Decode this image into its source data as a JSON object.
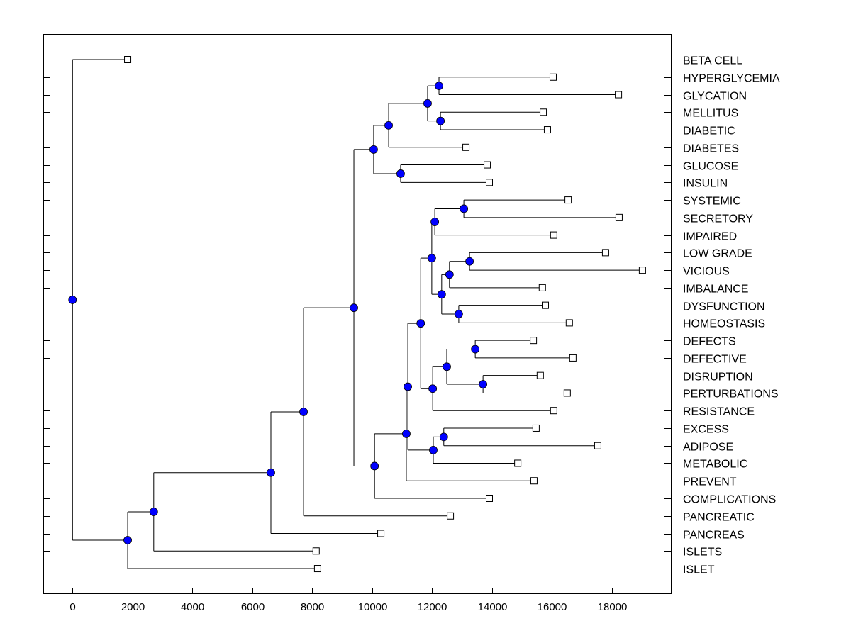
{
  "chart_data": {
    "type": "dendrogram",
    "title": "",
    "xlabel": "",
    "ylabel": "",
    "xlim": [
      -970,
      20000
    ],
    "xticks": [
      0,
      2000,
      4000,
      6000,
      8000,
      10000,
      12000,
      14000,
      16000,
      18000
    ],
    "grid": false,
    "colors": {
      "node": "#0000ff",
      "leaf": "#ffffff",
      "line": "#000000"
    },
    "leaf_order": [
      "BETA CELL",
      "HYPERGLYCEMIA",
      "GLYCATION",
      "MELLITUS",
      "DIABETIC",
      "DIABETES",
      "GLUCOSE",
      "INSULIN",
      "SYSTEMIC",
      "SECRETORY",
      "IMPAIRED",
      "LOW GRADE",
      "VICIOUS",
      "IMBALANCE",
      "DYSFUNCTION",
      "HOMEOSTASIS",
      "DEFECTS",
      "DEFECTIVE",
      "DISRUPTION",
      "PERTURBATIONS",
      "RESISTANCE",
      "EXCESS",
      "ADIPOSE",
      "METABOLIC",
      "PREVENT",
      "COMPLICATIONS",
      "PANCREATIC",
      "PANCREAS",
      "ISLETS",
      "ISLET"
    ],
    "tree": {
      "value": 0,
      "children": [
        {
          "label": "BETA CELL",
          "value": 1840
        },
        {
          "value": 1840,
          "children": [
            {
              "value": 2710,
              "children": [
                {
                  "value": 6620,
                  "children": [
                    {
                      "value": 7710,
                      "children": [
                        {
                          "value": 9390,
                          "children": [
                            {
                              "value": 10050,
                              "children": [
                                {
                                  "value": 10550,
                                  "children": [
                                    {
                                      "value": 11850,
                                      "children": [
                                        {
                                          "value": 12230,
                                          "children": [
                                            {
                                              "label": "HYPERGLYCEMIA",
                                              "value": 16040
                                            },
                                            {
                                              "label": "GLYCATION",
                                              "value": 18220
                                            }
                                          ]
                                        },
                                        {
                                          "value": 12280,
                                          "children": [
                                            {
                                              "label": "MELLITUS",
                                              "value": 15710
                                            },
                                            {
                                              "label": "DIABETIC",
                                              "value": 15850
                                            }
                                          ]
                                        }
                                      ]
                                    },
                                    {
                                      "label": "DIABETES",
                                      "value": 13130
                                    }
                                  ]
                                },
                                {
                                  "value": 10950,
                                  "children": [
                                    {
                                      "label": "GLUCOSE",
                                      "value": 13840
                                    },
                                    {
                                      "label": "INSULIN",
                                      "value": 13910
                                    }
                                  ]
                                }
                              ]
                            },
                            {
                              "value": 10080,
                              "children": [
                                {
                                  "value": 11140,
                                  "children": [
                                    {
                                      "value": 11190,
                                      "children": [
                                        {
                                          "value": 11620,
                                          "children": [
                                            {
                                              "value": 11990,
                                              "children": [
                                                {
                                                  "value": 12090,
                                                  "children": [
                                                    {
                                                      "value": 13060,
                                                      "children": [
                                                        {
                                                          "label": "SYSTEMIC",
                                                          "value": 16540
                                                        },
                                                        {
                                                          "label": "SECRETORY",
                                                          "value": 18240
                                                        }
                                                      ]
                                                    },
                                                    {
                                                      "label": "IMPAIRED",
                                                      "value": 16060
                                                    }
                                                  ]
                                                },
                                                {
                                                  "value": 12320,
                                                  "children": [
                                                    {
                                                      "value": 12580,
                                                      "children": [
                                                        {
                                                          "value": 13250,
                                                          "children": [
                                                            {
                                                              "label": "LOW GRADE",
                                                              "value": 17790
                                                            },
                                                            {
                                                              "label": "VICIOUS",
                                                              "value": 19020
                                                            }
                                                          ]
                                                        },
                                                        {
                                                          "label": "IMBALANCE",
                                                          "value": 15680
                                                        }
                                                      ]
                                                    },
                                                    {
                                                      "value": 12890,
                                                      "children": [
                                                        {
                                                          "label": "DYSFUNCTION",
                                                          "value": 15780
                                                        },
                                                        {
                                                          "label": "HOMEOSTASIS",
                                                          "value": 16580
                                                        }
                                                      ]
                                                    }
                                                  ]
                                                }
                                              ]
                                            },
                                            {
                                              "value": 12020,
                                              "children": [
                                                {
                                                  "value": 12490,
                                                  "children": [
                                                    {
                                                      "value": 13440,
                                                      "children": [
                                                        {
                                                          "label": "DEFECTS",
                                                          "value": 15380
                                                        },
                                                        {
                                                          "label": "DEFECTIVE",
                                                          "value": 16700
                                                        }
                                                      ]
                                                    },
                                                    {
                                                      "value": 13700,
                                                      "children": [
                                                        {
                                                          "label": "DISRUPTION",
                                                          "value": 15610
                                                        },
                                                        {
                                                          "label": "PERTURBATIONS",
                                                          "value": 16510
                                                        }
                                                      ]
                                                    }
                                                  ]
                                                },
                                                {
                                                  "label": "RESISTANCE",
                                                  "value": 16060
                                                }
                                              ]
                                            }
                                          ]
                                        },
                                        {
                                          "value": 12040,
                                          "children": [
                                            {
                                              "value": 12390,
                                              "children": [
                                                {
                                                  "label": "EXCESS",
                                                  "value": 15470
                                                },
                                                {
                                                  "label": "ADIPOSE",
                                                  "value": 17530
                                                }
                                              ]
                                            },
                                            {
                                              "label": "METABOLIC",
                                              "value": 14860
                                            }
                                          ]
                                        }
                                      ]
                                    },
                                    {
                                      "label": "PREVENT",
                                      "value": 15400
                                    }
                                  ]
                                },
                                {
                                  "label": "COMPLICATIONS",
                                  "value": 13910
                                }
                              ]
                            }
                          ]
                        },
                        {
                          "label": "PANCREATIC",
                          "value": 12610
                        }
                      ]
                    },
                    {
                      "label": "PANCREAS",
                      "value": 10290
                    }
                  ]
                },
                {
                  "label": "ISLETS",
                  "value": 8130
                }
              ]
            },
            {
              "label": "ISLET",
              "value": 8180
            }
          ]
        }
      ]
    }
  }
}
